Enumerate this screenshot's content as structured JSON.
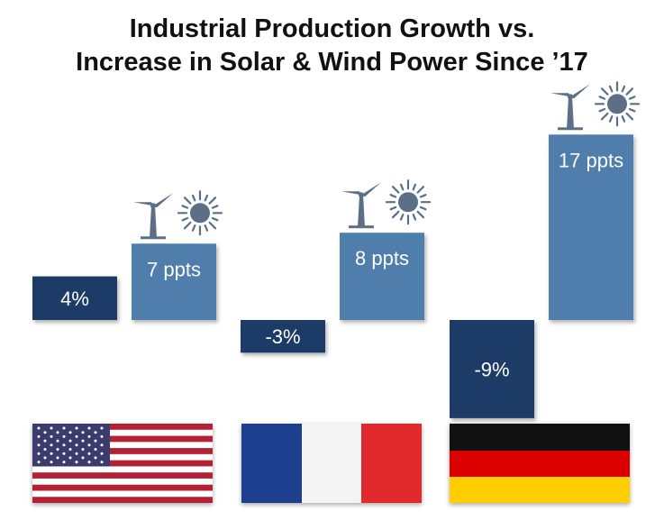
{
  "title_lines": [
    "Industrial Production Growth vs.",
    "Increase in Solar & Wind Power Since ’17"
  ],
  "colors": {
    "production_bar": "#1f3a66",
    "renewables_bar": "#4f7dac",
    "bar_label": "#ffffff",
    "icon": "#5b6f86"
  },
  "icons": [
    "wind-turbine-icon",
    "sun-icon"
  ],
  "chart_data": {
    "type": "bar",
    "categories": [
      "United States",
      "France",
      "Germany"
    ],
    "category_markers": [
      "us-flag",
      "france-flag",
      "germany-flag"
    ],
    "series": [
      {
        "values": [
          4,
          -3,
          -9
        ],
        "labels": [
          "4%",
          "-3%",
          "-9%"
        ],
        "unit": "%"
      },
      {
        "values": [
          7,
          8,
          17
        ],
        "labels": [
          "7 ppts",
          "8 ppts",
          "17 ppts"
        ],
        "unit": "ppts"
      }
    ],
    "ylim": [
      -10,
      20
    ],
    "grid": false,
    "legend": "none"
  }
}
